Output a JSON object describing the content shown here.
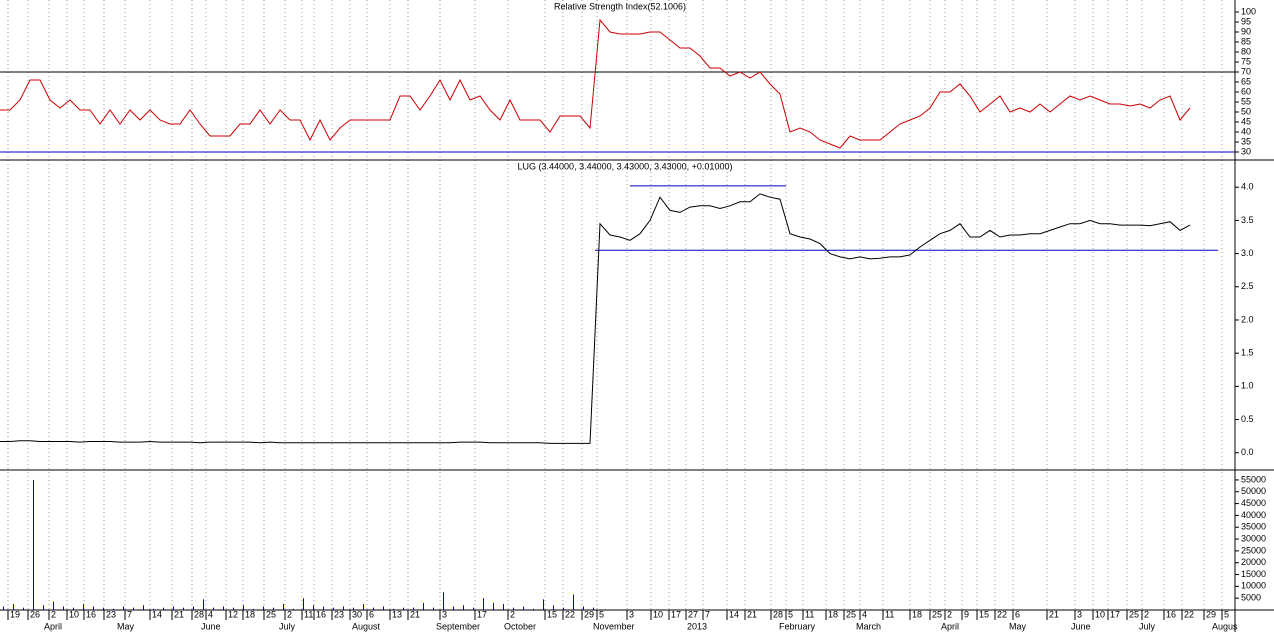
{
  "chart_data": [
    {
      "type": "line",
      "title": "Relative Strength Index(52.1006)",
      "color": "#cc0000",
      "ylim": [
        26,
        106
      ],
      "yticks": [
        100,
        95,
        90,
        85,
        80,
        75,
        70,
        65,
        60,
        55,
        50,
        45,
        40,
        35,
        30
      ],
      "levels": [
        {
          "value": 70,
          "color": "#000000"
        },
        {
          "value": 30,
          "color": "#0000cc"
        }
      ],
      "values": [
        51,
        51,
        56,
        66,
        66,
        56,
        52,
        56,
        51,
        51,
        44,
        51,
        44,
        51,
        46,
        51,
        46,
        44,
        44,
        51,
        44,
        38,
        38,
        38,
        44,
        44,
        51,
        44,
        51,
        46,
        46,
        36,
        46,
        36,
        42,
        46,
        46,
        46,
        46,
        46,
        58,
        58,
        51,
        58,
        66,
        56,
        66,
        56,
        58,
        51,
        46,
        56,
        46,
        46,
        46,
        40,
        48,
        48,
        48,
        42,
        96,
        90,
        89,
        89,
        89,
        90,
        90,
        86,
        82,
        82,
        78,
        72,
        72,
        68,
        70,
        67,
        70,
        64,
        59,
        40,
        42,
        40,
        36,
        34,
        32,
        38,
        36,
        36,
        36,
        40,
        44,
        46,
        48,
        52,
        60,
        60,
        64,
        58,
        50,
        54,
        58,
        50,
        52,
        50,
        54,
        50,
        54,
        58,
        56,
        58,
        56,
        54,
        54,
        53,
        54,
        52,
        56,
        58,
        46,
        52
      ]
    },
    {
      "type": "line",
      "title": "LUG (3.44000, 3.44000, 3.43000, 3.43000, +0.01000)",
      "color": "#000000",
      "ylim": [
        -0.26,
        4.41
      ],
      "yticks": [
        {
          "value": 4,
          "label": "4.0"
        },
        3.5,
        {
          "value": 3,
          "label": "3.0"
        },
        2.5,
        {
          "value": 2,
          "label": "2.0"
        },
        1.5,
        {
          "value": 1,
          "label": "1.0"
        },
        0.5,
        {
          "value": 0,
          "label": "0.0"
        }
      ],
      "levels": [
        {
          "value": 4.02,
          "color": "#0000cc"
        },
        {
          "value": 3.05,
          "color": "#0000cc"
        }
      ],
      "values": [
        0.17,
        0.17,
        0.18,
        0.18,
        0.17,
        0.17,
        0.17,
        0.17,
        0.16,
        0.17,
        0.17,
        0.17,
        0.16,
        0.16,
        0.16,
        0.17,
        0.16,
        0.16,
        0.16,
        0.16,
        0.15,
        0.16,
        0.16,
        0.16,
        0.16,
        0.16,
        0.15,
        0.16,
        0.15,
        0.15,
        0.15,
        0.15,
        0.15,
        0.15,
        0.15,
        0.15,
        0.15,
        0.15,
        0.15,
        0.15,
        0.15,
        0.15,
        0.15,
        0.15,
        0.15,
        0.15,
        0.16,
        0.16,
        0.16,
        0.15,
        0.15,
        0.15,
        0.15,
        0.15,
        0.15,
        0.14,
        0.14,
        0.14,
        0.14,
        0.14,
        3.45,
        3.28,
        3.25,
        3.2,
        3.3,
        3.5,
        3.85,
        3.65,
        3.62,
        3.7,
        3.72,
        3.72,
        3.68,
        3.72,
        3.78,
        3.78,
        3.9,
        3.85,
        3.82,
        3.3,
        3.25,
        3.22,
        3.15,
        3.0,
        2.95,
        2.92,
        2.95,
        2.92,
        2.93,
        2.95,
        2.95,
        2.98,
        3.1,
        3.2,
        3.3,
        3.35,
        3.45,
        3.25,
        3.25,
        3.35,
        3.25,
        3.28,
        3.28,
        3.3,
        3.3,
        3.35,
        3.4,
        3.45,
        3.45,
        3.5,
        3.45,
        3.45,
        3.43,
        3.43,
        3.43,
        3.42,
        3.45,
        3.48,
        3.35,
        3.43
      ]
    },
    {
      "type": "bar",
      "color": "#0000cc",
      "ylim": [
        0,
        59200
      ],
      "yticks": [
        55000,
        50000,
        45000,
        40000,
        35000,
        30000,
        25000,
        20000,
        15000,
        10000,
        5000
      ],
      "values": [
        1500,
        2500,
        1000,
        55000,
        2000,
        3500,
        1500,
        1000,
        2500,
        1500,
        1000,
        500,
        1500,
        1000,
        2000,
        500,
        1000,
        1500,
        1000,
        1500,
        4500,
        1000,
        1500,
        1000,
        2000,
        500,
        1500,
        1000,
        2500,
        500,
        5000,
        2000,
        1500,
        1000,
        1500,
        1000,
        2500,
        1000,
        1500,
        500,
        1000,
        1000,
        3000,
        1000,
        7500,
        1500,
        2000,
        1000,
        5000,
        3000,
        2500,
        1000,
        1500,
        500,
        4500,
        2000,
        1000,
        6500,
        1500,
        1000
      ]
    }
  ],
  "x_axis": {
    "dates": [
      "19",
      "26",
      "2",
      "10",
      "16",
      "23",
      "7",
      "14",
      "21",
      "28",
      "4",
      "12",
      "18",
      "25",
      "2",
      "11",
      "16",
      "23",
      "30",
      "6",
      "13",
      "21",
      "3",
      "17",
      "2",
      "15",
      "22",
      "29",
      "5",
      "3",
      "10",
      "17",
      "27",
      "7",
      "14",
      "21",
      "28",
      "5",
      "11",
      "18",
      "25",
      "4",
      "11",
      "18",
      "25",
      "2",
      "9",
      "15",
      "22",
      "6",
      "21",
      "3",
      "10",
      "17",
      "25",
      "2",
      "16",
      "22",
      "29",
      "5"
    ],
    "months": [
      "April",
      "May",
      "June",
      "July",
      "August",
      "September",
      "October",
      "November",
      "2013",
      "February",
      "March",
      "April",
      "May",
      "June",
      "July",
      "Augus"
    ]
  }
}
